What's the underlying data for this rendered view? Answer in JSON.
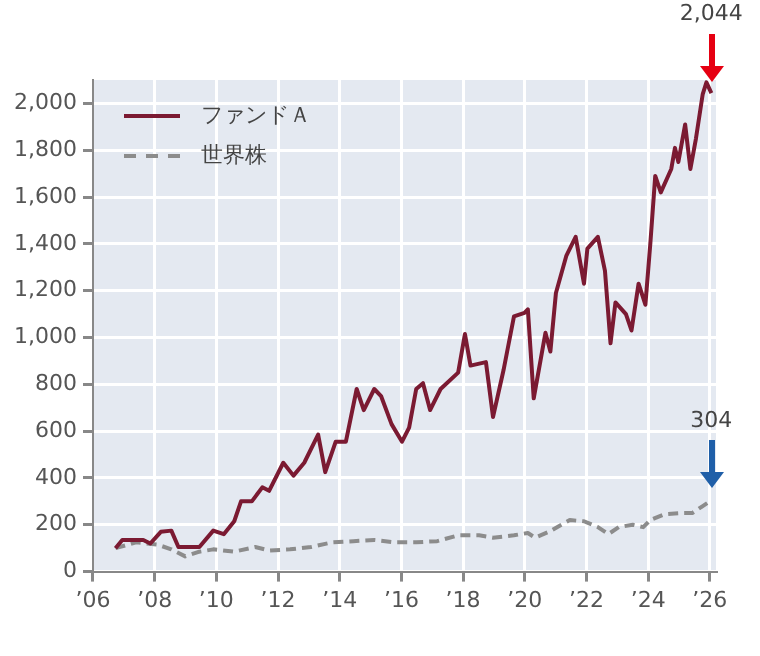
{
  "chart_data": {
    "type": "line",
    "xlim": [
      2006,
      2026.2
    ],
    "ylim": [
      0,
      2100
    ],
    "xticks": [
      {
        "value": 2006,
        "label": "’06"
      },
      {
        "value": 2008,
        "label": "’08"
      },
      {
        "value": 2010,
        "label": "’10"
      },
      {
        "value": 2012,
        "label": "’12"
      },
      {
        "value": 2014,
        "label": "’14"
      },
      {
        "value": 2016,
        "label": "’16"
      },
      {
        "value": 2018,
        "label": "’18"
      },
      {
        "value": 2020,
        "label": "’20"
      },
      {
        "value": 2022,
        "label": "’22"
      },
      {
        "value": 2024,
        "label": "’24"
      },
      {
        "value": 2026,
        "label": "’26"
      }
    ],
    "yticks": [
      {
        "value": 0,
        "label": "0"
      },
      {
        "value": 200,
        "label": "200"
      },
      {
        "value": 400,
        "label": "400"
      },
      {
        "value": 600,
        "label": "600"
      },
      {
        "value": 800,
        "label": "800"
      },
      {
        "value": 1000,
        "label": "1,000"
      },
      {
        "value": 1200,
        "label": "1,200"
      },
      {
        "value": 1400,
        "label": "1,400"
      },
      {
        "value": 1600,
        "label": "1,600"
      },
      {
        "value": 1800,
        "label": "1,800"
      },
      {
        "value": 2000,
        "label": "2,000"
      }
    ],
    "grid": true,
    "legend": "top left",
    "series": [
      {
        "name": "ファンドＡ",
        "color": "#7b1a32",
        "line_style": "solid",
        "x": [
          2006.73,
          2006.95,
          2007.63,
          2007.86,
          2008.2,
          2008.54,
          2008.77,
          2009.45,
          2009.9,
          2010.24,
          2010.58,
          2010.8,
          2011.15,
          2011.49,
          2011.71,
          2012.17,
          2012.5,
          2012.85,
          2013.3,
          2013.53,
          2013.87,
          2014.2,
          2014.55,
          2014.78,
          2015.12,
          2015.34,
          2015.68,
          2016.02,
          2016.25,
          2016.48,
          2016.7,
          2016.93,
          2017.27,
          2017.84,
          2018.06,
          2018.24,
          2018.74,
          2018.97,
          2019.31,
          2019.65,
          2019.99,
          2020.1,
          2020.29,
          2020.67,
          2020.83,
          2021.01,
          2021.35,
          2021.65,
          2021.92,
          2022.03,
          2022.37,
          2022.6,
          2022.78,
          2022.94,
          2023.28,
          2023.46,
          2023.69,
          2023.91,
          2024.07,
          2024.23,
          2024.41,
          2024.75,
          2024.87,
          2024.98,
          2025.2,
          2025.37,
          2025.55,
          2025.77,
          2025.89,
          2026.05
        ],
        "values": [
          100,
          135,
          135,
          120,
          170,
          175,
          105,
          105,
          175,
          160,
          215,
          300,
          300,
          360,
          345,
          465,
          410,
          465,
          585,
          425,
          555,
          555,
          780,
          690,
          780,
          750,
          630,
          555,
          615,
          780,
          805,
          690,
          780,
          850,
          1015,
          880,
          895,
          660,
          860,
          1090,
          1105,
          1120,
          740,
          1020,
          940,
          1190,
          1350,
          1430,
          1230,
          1380,
          1430,
          1285,
          975,
          1150,
          1100,
          1030,
          1230,
          1140,
          1400,
          1690,
          1620,
          1720,
          1810,
          1750,
          1910,
          1720,
          1850,
          2040,
          2090,
          2044
        ]
      },
      {
        "name": "世界株",
        "color": "#8c8c8c",
        "line_style": "dashed",
        "x": [
          2006.73,
          2007.4,
          2008.1,
          2008.54,
          2008.99,
          2009.45,
          2009.9,
          2010.58,
          2011.26,
          2011.71,
          2012.39,
          2013.07,
          2013.76,
          2014.44,
          2015.12,
          2015.8,
          2016.48,
          2017.16,
          2017.84,
          2018.52,
          2018.97,
          2019.65,
          2020.1,
          2020.33,
          2020.78,
          2021.46,
          2021.92,
          2022.37,
          2022.71,
          2023.05,
          2023.5,
          2023.84,
          2024.07,
          2024.53,
          2025.09,
          2025.43,
          2025.77,
          2026.05
        ],
        "values": [
          100,
          125,
          115,
          95,
          65,
          85,
          95,
          85,
          105,
          90,
          95,
          105,
          125,
          130,
          135,
          125,
          125,
          130,
          155,
          155,
          145,
          155,
          165,
          145,
          170,
          220,
          215,
          190,
          160,
          190,
          200,
          190,
          220,
          245,
          250,
          250,
          280,
          304
        ]
      }
    ],
    "annotations": [
      "2,044",
      "304"
    ]
  }
}
